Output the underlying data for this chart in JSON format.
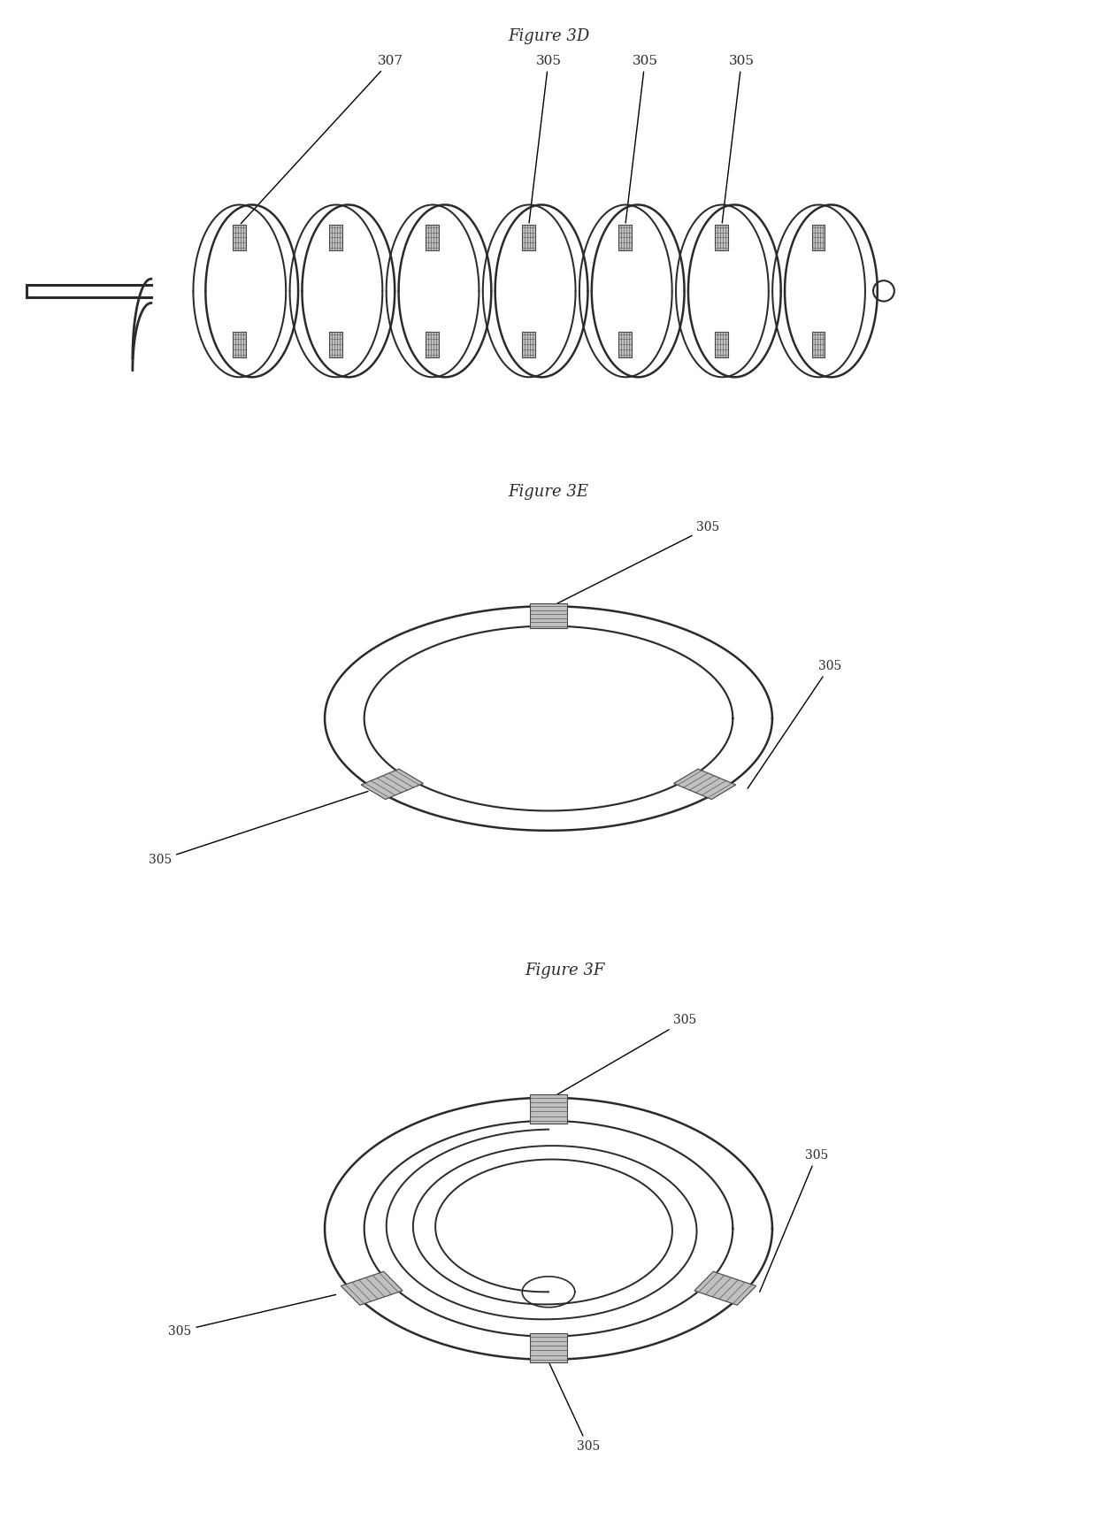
{
  "fig3d_title": "Figure 3D",
  "fig3e_title": "Figure 3E",
  "fig3f_title": "Figure 3F",
  "bg_color": "#ffffff",
  "line_color": "#2a2a2a",
  "label_color": "#2a2a2a",
  "electrode_fill": "#c0c0c0",
  "electrode_edge": "#444444"
}
